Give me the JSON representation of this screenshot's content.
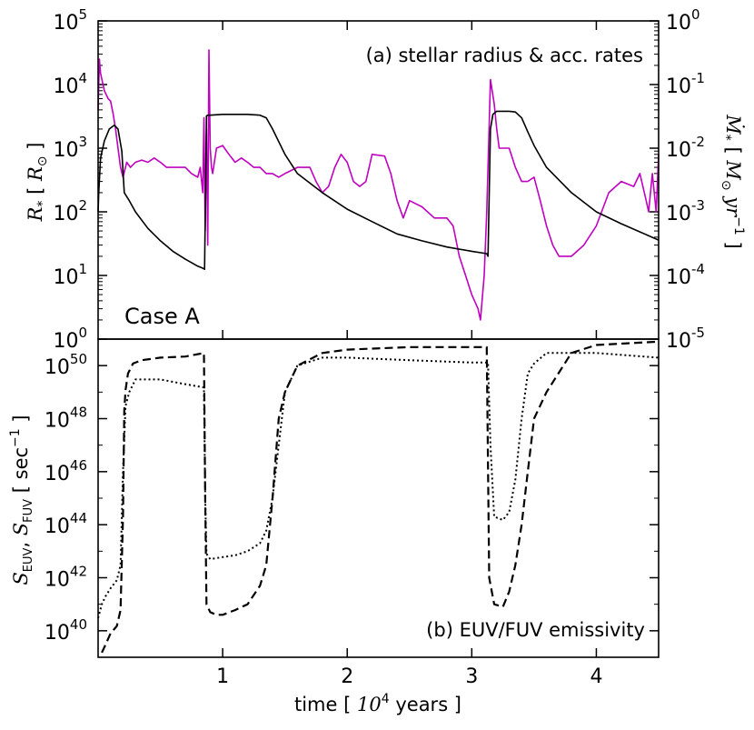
{
  "chart_data": [
    {
      "panel": "a",
      "type": "line",
      "annotation": "(a) stellar radius & acc. rates",
      "case_label": "Case A",
      "xlim": [
        0.0,
        4.5
      ],
      "ylabel_left": "R_* [ R_⊙ ]",
      "ylabel_left_parts": {
        "sym": "R",
        "sub": "*",
        "open": "[",
        "unit": "R",
        "unit_sub": "⊙",
        "close": "]"
      },
      "ylabel_right": "Ṁ_* [ M_⊙ yr^-1 ]",
      "ylabel_right_parts": {
        "sym": "Ṁ",
        "sub": "*",
        "open": "[",
        "unit": "M",
        "unit_sub": "⊙",
        "unit2": "yr",
        "unit2_sup": "−1",
        "close": "]"
      },
      "left_scale": "log",
      "left_ylim": [
        1,
        100000
      ],
      "left_ticks": [
        {
          "base": "10",
          "exp": "0"
        },
        {
          "base": "10",
          "exp": "1"
        },
        {
          "base": "10",
          "exp": "2"
        },
        {
          "base": "10",
          "exp": "3"
        },
        {
          "base": "10",
          "exp": "4"
        },
        {
          "base": "10",
          "exp": "5"
        }
      ],
      "right_scale": "log",
      "right_ylim": [
        1e-05,
        1
      ],
      "right_ticks": [
        {
          "base": "10",
          "exp": "-5"
        },
        {
          "base": "10",
          "exp": "-4"
        },
        {
          "base": "10",
          "exp": "-3"
        },
        {
          "base": "10",
          "exp": "-2"
        },
        {
          "base": "10",
          "exp": "-1"
        },
        {
          "base": "10",
          "exp": "0"
        }
      ],
      "series": [
        {
          "name": "stellar radius",
          "axis": "left",
          "color": "#000000",
          "style": "solid",
          "x": [
            0.0,
            0.005,
            0.02,
            0.05,
            0.09,
            0.13,
            0.16,
            0.19,
            0.21,
            0.25,
            0.3,
            0.4,
            0.5,
            0.6,
            0.7,
            0.8,
            0.84,
            0.855,
            0.87,
            0.88,
            0.9,
            1.0,
            1.1,
            1.2,
            1.3,
            1.35,
            1.4,
            1.5,
            1.6,
            1.8,
            2.0,
            2.2,
            2.4,
            2.6,
            2.8,
            3.0,
            3.12,
            3.13,
            3.15,
            3.17,
            3.2,
            3.25,
            3.3,
            3.35,
            3.4,
            3.45,
            3.5,
            3.6,
            3.8,
            4.0,
            4.2,
            4.5
          ],
          "y": [
            100,
            200,
            700,
            1300,
            2000,
            2300,
            2000,
            900,
            200,
            150,
            100,
            55,
            35,
            24,
            18,
            14,
            13,
            12.5,
            3200,
            3300,
            3300,
            3400,
            3400,
            3400,
            3300,
            3000,
            2000,
            800,
            400,
            200,
            110,
            70,
            45,
            35,
            28,
            24,
            22,
            20,
            2000,
            3400,
            3800,
            3800,
            3800,
            3700,
            3000,
            1800,
            1100,
            500,
            200,
            100,
            65,
            36
          ]
        },
        {
          "name": "accretion rate",
          "axis": "right",
          "color": "#c000c0",
          "style": "solid",
          "x": [
            0.0,
            0.01,
            0.02,
            0.05,
            0.08,
            0.1,
            0.12,
            0.14,
            0.16,
            0.18,
            0.2,
            0.23,
            0.26,
            0.3,
            0.35,
            0.4,
            0.45,
            0.5,
            0.55,
            0.6,
            0.7,
            0.75,
            0.8,
            0.82,
            0.84,
            0.85,
            0.86,
            0.87,
            0.88,
            0.89,
            0.9,
            0.91,
            0.92,
            0.95,
            1.0,
            1.05,
            1.1,
            1.15,
            1.2,
            1.25,
            1.3,
            1.35,
            1.4,
            1.45,
            1.5,
            1.6,
            1.7,
            1.75,
            1.8,
            1.85,
            1.9,
            1.95,
            2.0,
            2.05,
            2.1,
            2.15,
            2.2,
            2.3,
            2.35,
            2.4,
            2.45,
            2.5,
            2.6,
            2.7,
            2.8,
            2.85,
            2.9,
            2.95,
            3.0,
            3.05,
            3.07,
            3.1,
            3.12,
            3.15,
            3.18,
            3.2,
            3.22,
            3.25,
            3.3,
            3.35,
            3.4,
            3.45,
            3.5,
            3.55,
            3.6,
            3.65,
            3.7,
            3.8,
            3.9,
            4.0,
            4.1,
            4.2,
            4.3,
            4.35,
            4.4,
            4.42,
            4.45,
            4.48,
            4.5
          ],
          "y": [
            0.04,
            0.25,
            0.15,
            0.08,
            0.06,
            0.055,
            0.035,
            0.02,
            0.01,
            0.005,
            0.0035,
            0.006,
            0.005,
            0.006,
            0.0065,
            0.006,
            0.007,
            0.006,
            0.005,
            0.005,
            0.005,
            0.004,
            0.0035,
            0.005,
            0.002,
            0.03,
            0.0005,
            0.02,
            0.0003,
            0.35,
            0.01,
            0.005,
            0.004,
            0.01,
            0.011,
            0.008,
            0.006,
            0.007,
            0.006,
            0.005,
            0.005,
            0.004,
            0.004,
            0.0035,
            0.004,
            0.005,
            0.005,
            0.003,
            0.002,
            0.0025,
            0.005,
            0.008,
            0.006,
            0.003,
            0.0025,
            0.003,
            0.008,
            0.0075,
            0.004,
            0.0015,
            0.0008,
            0.0015,
            0.0012,
            0.0008,
            0.0008,
            0.0006,
            0.0002,
            0.0001,
            5e-05,
            3e-05,
            2e-05,
            0.0001,
            0.001,
            0.12,
            0.05,
            0.02,
            0.01,
            0.01,
            0.01,
            0.005,
            0.003,
            0.003,
            0.0035,
            0.0015,
            0.0006,
            0.0003,
            0.0002,
            0.0002,
            0.0003,
            0.0006,
            0.002,
            0.003,
            0.0025,
            0.004,
            0.0015,
            0.001,
            0.004,
            0.001,
            0.008
          ]
        }
      ]
    },
    {
      "panel": "b",
      "type": "line",
      "annotation": "(b) EUV/FUV emissivity",
      "xlabel": "time [ 10^4 years ]",
      "xlabel_parts": {
        "pre": "time [",
        "base": "10",
        "exp": "4",
        "post": "years ]"
      },
      "ylabel": "S_EUV, S_FUV [ sec^-1 ]",
      "ylabel_parts": {
        "s1": "S",
        "s1_sub": "EUV",
        "comma": ",",
        "s2": "S",
        "s2_sub": "FUV",
        "open": "[",
        "unit": "sec",
        "unit_sup": "−1",
        "close": "]"
      },
      "xlim": [
        0.0,
        4.5
      ],
      "x_ticks": [
        {
          "value": 1,
          "label": "1"
        },
        {
          "value": 2,
          "label": "2"
        },
        {
          "value": 3,
          "label": "3"
        },
        {
          "value": 4,
          "label": "4"
        }
      ],
      "y_scale": "log",
      "ylim": [
        1e+39,
        1e+51
      ],
      "y_ticks": [
        {
          "base": "10",
          "exp": "40"
        },
        {
          "base": "10",
          "exp": "42"
        },
        {
          "base": "10",
          "exp": "44"
        },
        {
          "base": "10",
          "exp": "46"
        },
        {
          "base": "10",
          "exp": "48"
        },
        {
          "base": "10",
          "exp": "50"
        }
      ],
      "series": [
        {
          "name": "S_EUV",
          "style": "dashed",
          "color": "#000000",
          "x": [
            0.03,
            0.06,
            0.1,
            0.15,
            0.18,
            0.2,
            0.21,
            0.22,
            0.24,
            0.28,
            0.35,
            0.5,
            0.7,
            0.85,
            0.86,
            0.87,
            0.9,
            0.95,
            1.0,
            1.1,
            1.2,
            1.3,
            1.35,
            1.4,
            1.45,
            1.5,
            1.6,
            1.8,
            2.0,
            2.5,
            3.0,
            3.12,
            3.14,
            3.18,
            3.25,
            3.3,
            3.35,
            3.4,
            3.45,
            3.5,
            3.6,
            3.8,
            4.0,
            4.5
          ],
          "y": [
            1.5e+39,
            3e+39,
            8e+39,
            1.5e+40,
            6e+40,
            2e+44,
            2e+48,
            1.2e+49,
            5e+49,
            1.2e+50,
            1.6e+50,
            2e+50,
            2.2e+50,
            3e+50,
            1e+45,
            1e+41,
            5e+40,
            4e+40,
            4e+40,
            6e+40,
            1e+41,
            5e+41,
            3e+42,
            1e+45,
            1e+48,
            1e+49,
            1e+50,
            3e+50,
            4e+50,
            5e+50,
            5e+50,
            5e+50,
            1e+42,
            1e+41,
            8e+40,
            3e+41,
            3e+42,
            1e+44,
            1e+46,
            1e+48,
            1e+49,
            3e+50,
            6e+50,
            8e+50
          ]
        },
        {
          "name": "S_FUV",
          "style": "dotted",
          "color": "#000000",
          "x": [
            0.0,
            0.03,
            0.06,
            0.1,
            0.15,
            0.18,
            0.2,
            0.22,
            0.25,
            0.3,
            0.5,
            0.7,
            0.85,
            0.86,
            0.87,
            0.9,
            1.0,
            1.1,
            1.2,
            1.3,
            1.35,
            1.4,
            1.45,
            1.5,
            1.6,
            1.8,
            2.0,
            2.5,
            3.0,
            3.13,
            3.15,
            3.18,
            3.25,
            3.3,
            3.35,
            3.4,
            3.45,
            3.5,
            3.6,
            3.8,
            4.0,
            4.5
          ],
          "y": [
            3e+40,
            1e+41,
            2e+41,
            4e+41,
            8e+41,
            3e+42,
            1e+46,
            3e+48,
            1e+49,
            3e+49,
            3e+49,
            2e+49,
            1.5e+49,
            1e+45,
            8e+42,
            5e+42,
            6e+42,
            7e+42,
            1e+43,
            2e+43,
            6e+43,
            1e+45,
            1e+47,
            1e+49,
            1e+50,
            2e+50,
            2e+50,
            1.6e+50,
            1.3e+50,
            1.3e+50,
            1e+47,
            2e+44,
            1.5e+44,
            3e+44,
            5e+45,
            1e+48,
            5e+49,
            1.2e+50,
            3e+50,
            3e+50,
            3e+50,
            2e+50
          ]
        }
      ]
    }
  ]
}
